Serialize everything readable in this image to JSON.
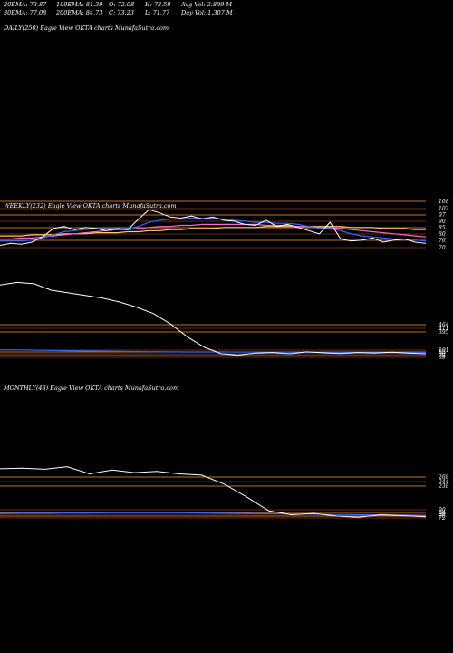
{
  "header": {
    "ema20": "20EMA: 73.87",
    "ema100": "100EMA: 81.39",
    "open": "O: 72.08",
    "high": "H: 73.58",
    "avg_vol": "Avg Vol: 2.899 M",
    "ema30": "30EMA: 77.08",
    "ema200": "200EMA: 84.73",
    "close": "C: 73.23",
    "low": "L: 71.77",
    "day_vol": "Day Vol: 1.307 M"
  },
  "panels": {
    "daily_label": "DAILY(250) Eagle   View  OKTA charts MunafaSutra.com",
    "weekly_label": "WEEKLY(232) Eagle   View  OKTA charts MunafaSutra.com",
    "monthly_label": "MONTHLY(48) Eagle   View  OKTA charts MunafaSutra.com"
  },
  "colors": {
    "background": "#000000",
    "price_line": "#ffffff",
    "ema_fast": "#3366ff",
    "ema_mid": "#ff66cc",
    "ema_slow": "#ffcc66",
    "level_line": "#ff9933",
    "level_line_dark": "#8b3a1a"
  },
  "chart_data": [
    {
      "type": "line",
      "title": "WEEKLY(232) Eagle View OKTA charts MunafaSutra.com",
      "ylim": [
        60,
        112
      ],
      "levels": [
        108,
        102,
        97,
        90,
        85,
        80,
        76,
        70
      ],
      "level_labels": [
        "108",
        "102",
        "97",
        "90",
        "85",
        "80",
        "76",
        "70"
      ],
      "series": [
        {
          "values": [
            70,
            72,
            71,
            73,
            78,
            86,
            88,
            85,
            87,
            86,
            84,
            86,
            85,
            95,
            104,
            101,
            97,
            96,
            98,
            95,
            97,
            94,
            93,
            90,
            89,
            94,
            88,
            90,
            87,
            84,
            81,
            92,
            76,
            74,
            75,
            77,
            73,
            75,
            76,
            73,
            72
          ]
        },
        {
          "values": [
            74,
            74,
            74,
            75,
            77,
            80,
            83,
            84,
            85,
            86,
            86,
            86,
            86,
            88,
            92,
            94,
            95,
            95,
            96,
            96,
            96,
            95,
            94,
            93,
            92,
            92,
            91,
            91,
            90,
            88,
            86,
            86,
            84,
            81,
            79,
            78,
            77,
            76,
            75,
            75,
            74
          ]
        },
        {
          "values": [
            76,
            76,
            77,
            77,
            78,
            79,
            80,
            81,
            82,
            83,
            84,
            85,
            85,
            86,
            87,
            88,
            88,
            89,
            89,
            90,
            90,
            90,
            90,
            90,
            90,
            89,
            89,
            89,
            88,
            88,
            87,
            87,
            86,
            85,
            84,
            83,
            82,
            81,
            80,
            79,
            78
          ]
        },
        {
          "values": [
            79,
            79,
            79,
            80,
            80,
            80,
            81,
            81,
            81,
            82,
            82,
            82,
            83,
            83,
            84,
            84,
            85,
            85,
            86,
            86,
            86,
            87,
            87,
            87,
            87,
            88,
            88,
            88,
            88,
            88,
            88,
            88,
            88,
            87,
            87,
            87,
            86,
            86,
            86,
            85,
            85
          ]
        }
      ]
    },
    {
      "type": "line",
      "title": "",
      "ylim": [
        0,
        700
      ],
      "level_labels": [
        "464",
        "411",
        "395",
        "101",
        "83",
        "80",
        "72",
        "69"
      ],
      "series": [
        {
          "values": [
            600,
            620,
            610,
            560,
            540,
            520,
            500,
            470,
            430,
            380,
            300,
            200,
            120,
            70,
            60,
            75,
            80,
            70,
            85,
            78,
            72,
            80,
            76,
            82,
            75,
            70
          ]
        },
        {
          "values": [
            100,
            100,
            98,
            96,
            94,
            92,
            90,
            88,
            87,
            86,
            85,
            84,
            84,
            84,
            83,
            83,
            83,
            82,
            82,
            82,
            81,
            81,
            81,
            80,
            80,
            80
          ]
        }
      ]
    },
    {
      "type": "line",
      "title": "MONTHLY(48) Eagle View OKTA charts MunafaSutra.com",
      "ylim": [
        0,
        320
      ],
      "level_labels": [
        "268",
        "244",
        "238",
        "90",
        "84",
        "80",
        "76",
        "72"
      ],
      "series": [
        {
          "values": [
            260,
            262,
            258,
            268,
            240,
            255,
            245,
            250,
            240,
            235,
            200,
            150,
            95,
            80,
            85,
            75,
            70,
            80,
            76,
            72
          ]
        },
        {
          "values": [
            85,
            86,
            86,
            87,
            87,
            88,
            88,
            88,
            88,
            87,
            86,
            85,
            84,
            83,
            82,
            81,
            80,
            79,
            78,
            77
          ]
        }
      ]
    }
  ]
}
